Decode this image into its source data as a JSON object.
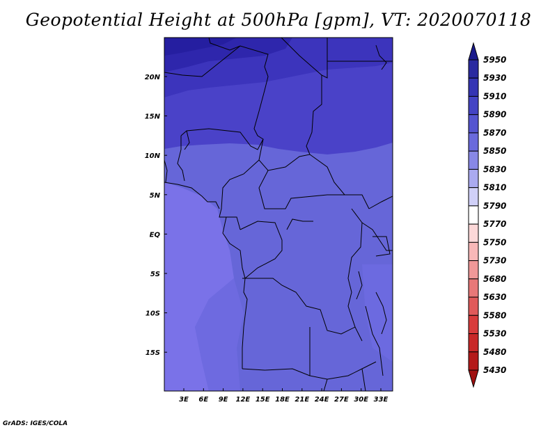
{
  "title": "Geopotential Height at 500hPa [gpm], VT: 2020070118",
  "credit": "GrADS: IGES/COLA",
  "map": {
    "lat_labels": [
      "20N",
      "15N",
      "10N",
      "5N",
      "EQ",
      "5S",
      "10S",
      "15S"
    ],
    "lon_labels": [
      "3E",
      "6E",
      "9E",
      "12E",
      "15E",
      "18E",
      "21E",
      "24E",
      "27E",
      "30E",
      "33E"
    ]
  },
  "colorbar": {
    "levels": [
      "5950",
      "5930",
      "5910",
      "5890",
      "5870",
      "5850",
      "5830",
      "5810",
      "5790",
      "5770",
      "5750",
      "5730",
      "5680",
      "5630",
      "5580",
      "5530",
      "5480",
      "5430"
    ],
    "colors": [
      "#1a1a8c",
      "#2a2aa0",
      "#3535b4",
      "#4444c4",
      "#5555d0",
      "#6a6adc",
      "#8888e6",
      "#aaaaf0",
      "#d0d0f8",
      "#ffffff",
      "#fcd8d8",
      "#f8b8b8",
      "#f09898",
      "#e87878",
      "#e05a5a",
      "#d83c3c",
      "#c82828",
      "#b41a1a",
      "#a01010"
    ]
  }
}
